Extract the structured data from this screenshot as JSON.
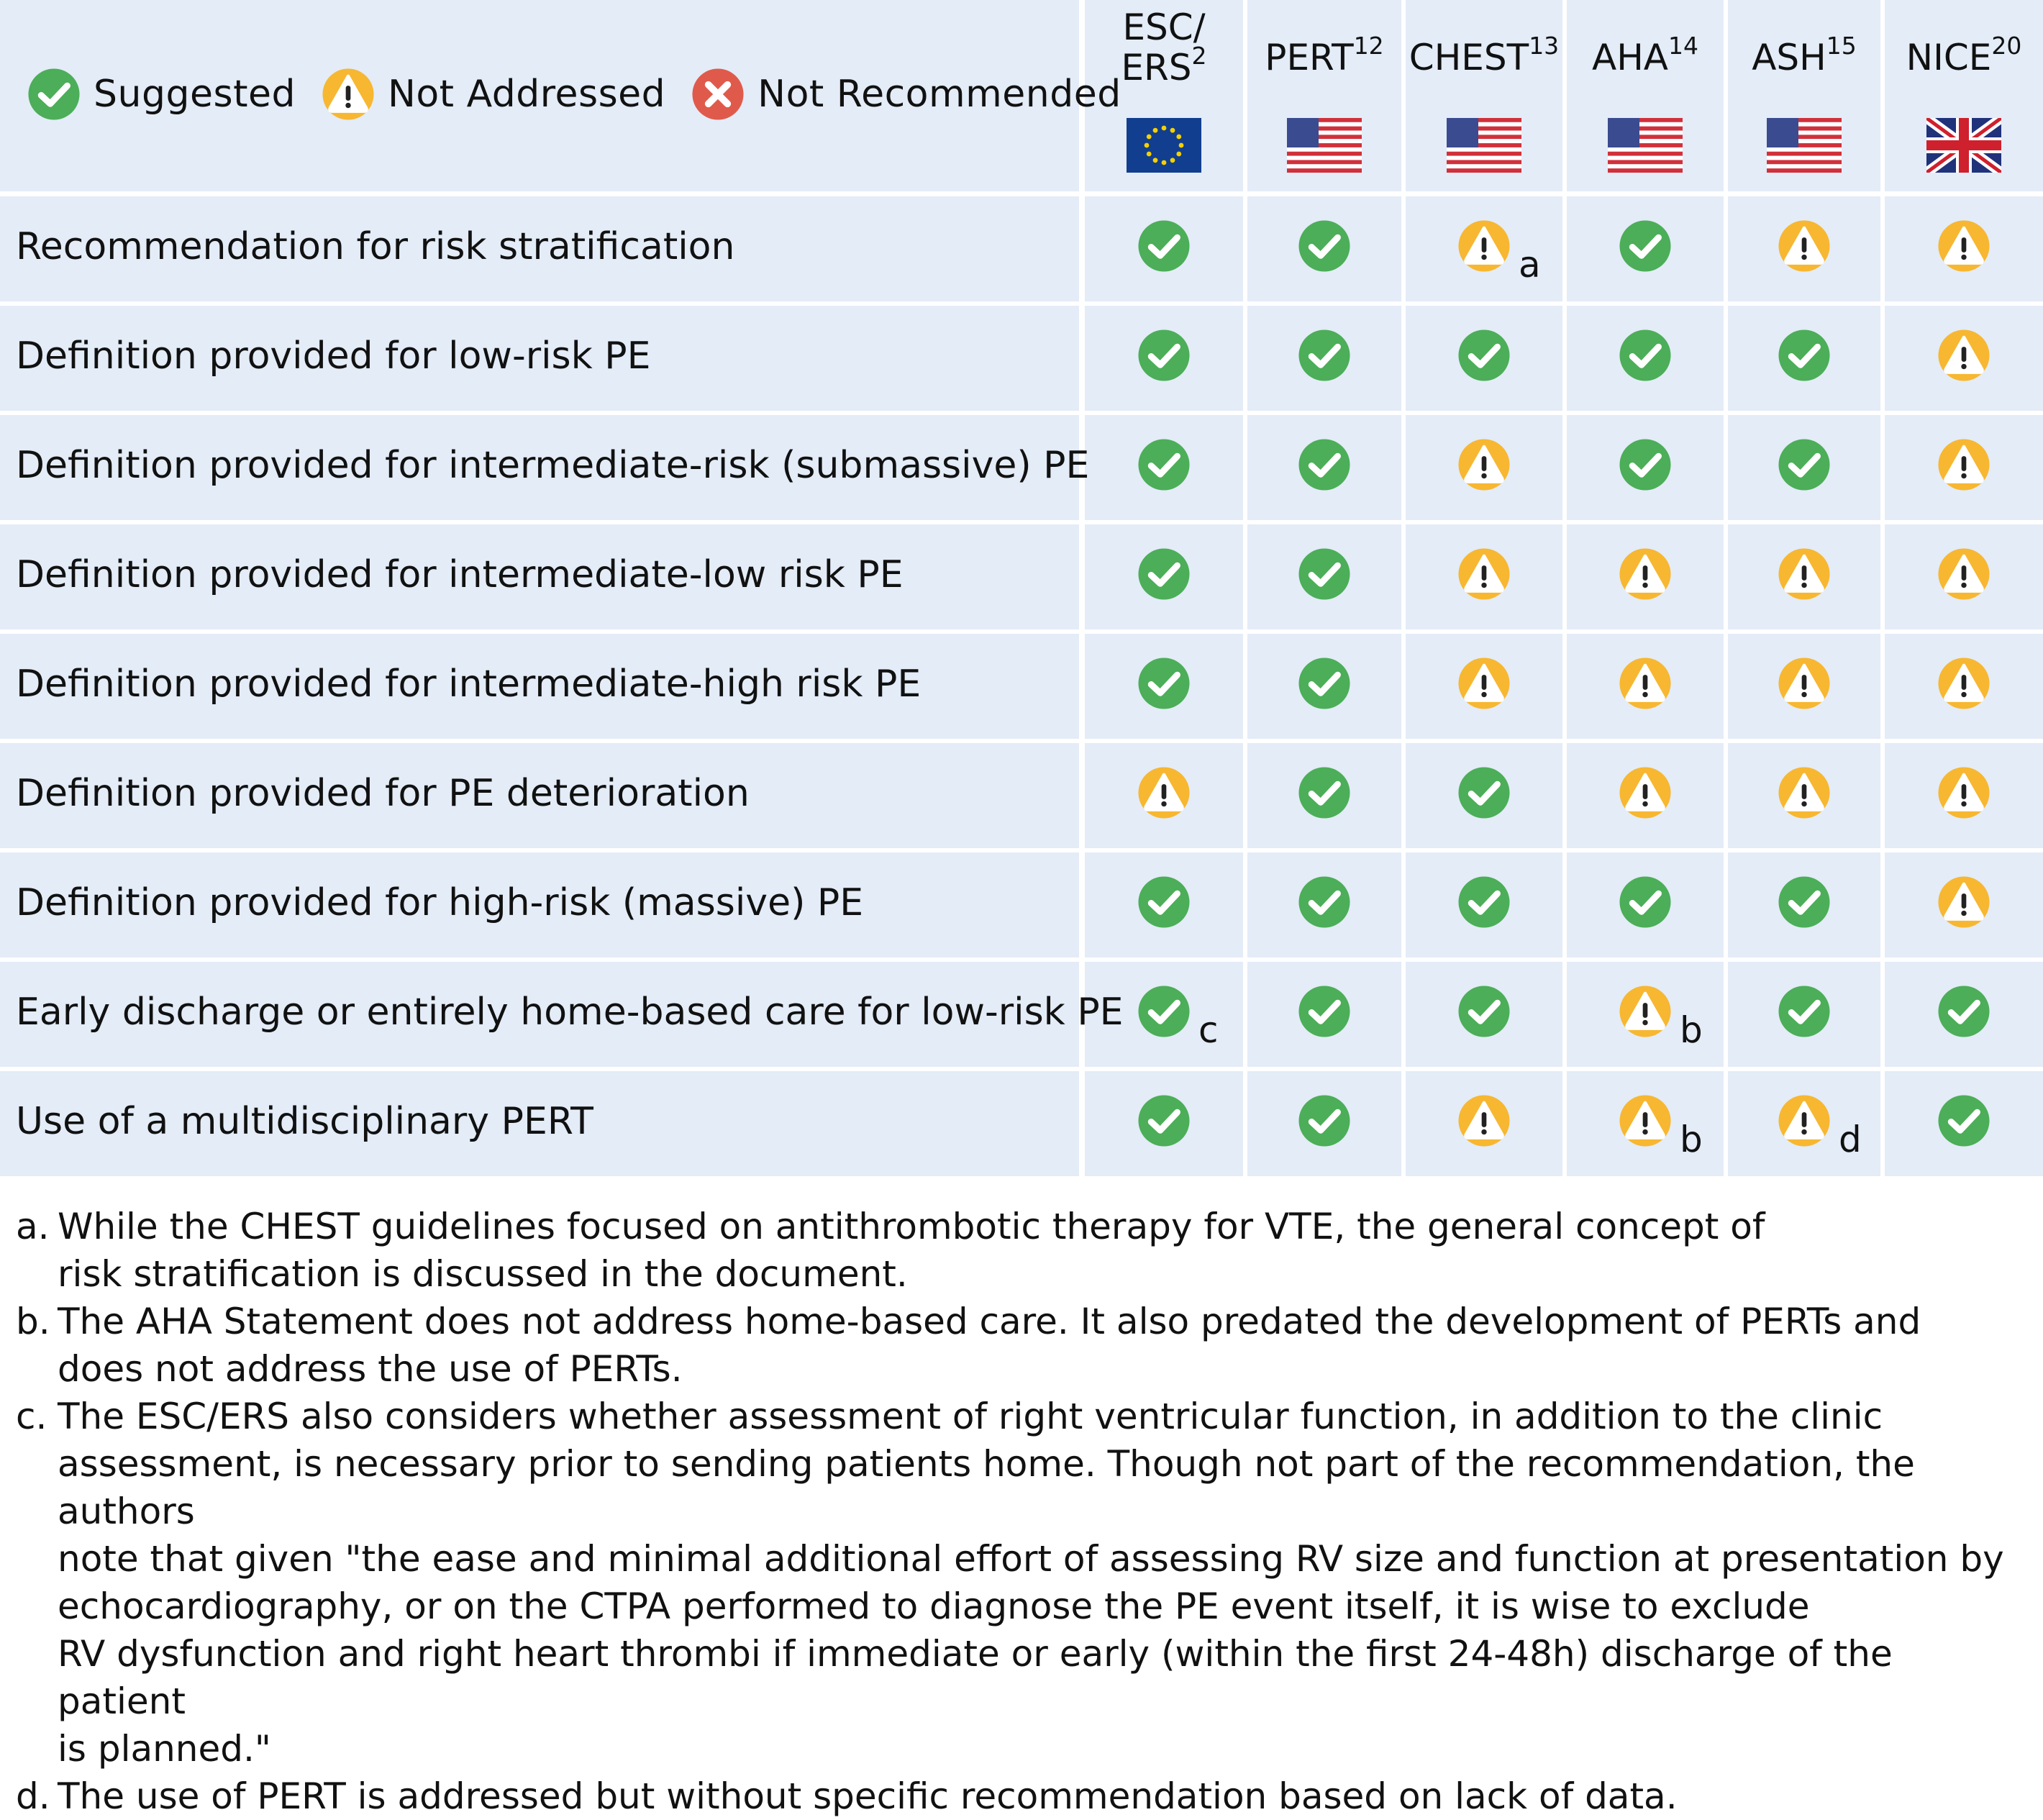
{
  "legend": [
    {
      "icon": "check-icon",
      "label": "Suggested"
    },
    {
      "icon": "warning-icon",
      "label": "Not Addressed"
    },
    {
      "icon": "x-icon",
      "label": "Not Recommended"
    }
  ],
  "colors": {
    "cell_bg": "#e3ecf7",
    "green": "#4cae58",
    "amber": "#f7b731",
    "red": "#e05a4b"
  },
  "columns": [
    {
      "name": "ESC/ERS",
      "name_lines": [
        "ESC/",
        "ERS"
      ],
      "ref": "2",
      "flag": "eu-flag-icon"
    },
    {
      "name": "PERT",
      "ref": "12",
      "flag": "us-flag-icon"
    },
    {
      "name": "CHEST",
      "ref": "13",
      "flag": "us-flag-icon"
    },
    {
      "name": "AHA",
      "ref": "14",
      "flag": "us-flag-icon"
    },
    {
      "name": "ASH",
      "ref": "15",
      "flag": "us-flag-icon"
    },
    {
      "name": "NICE",
      "ref": "20",
      "flag": "uk-flag-icon"
    }
  ],
  "rows": [
    {
      "label": "Recommendation for risk stratification",
      "values": [
        "check",
        "check",
        "warning",
        "check",
        "warning",
        "warning"
      ],
      "notes": [
        "",
        "",
        "a",
        "",
        "",
        ""
      ]
    },
    {
      "label": "Definition provided for low-risk PE",
      "values": [
        "check",
        "check",
        "check",
        "check",
        "check",
        "warning"
      ],
      "notes": [
        "",
        "",
        "",
        "",
        "",
        ""
      ]
    },
    {
      "label": "Definition provided for intermediate-risk (submassive) PE",
      "values": [
        "check",
        "check",
        "warning",
        "check",
        "check",
        "warning"
      ],
      "notes": [
        "",
        "",
        "",
        "",
        "",
        ""
      ]
    },
    {
      "label": "Definition provided for intermediate-low risk PE",
      "values": [
        "check",
        "check",
        "warning",
        "warning",
        "warning",
        "warning"
      ],
      "notes": [
        "",
        "",
        "",
        "",
        "",
        ""
      ]
    },
    {
      "label": "Definition provided for intermediate-high risk PE",
      "values": [
        "check",
        "check",
        "warning",
        "warning",
        "warning",
        "warning"
      ],
      "notes": [
        "",
        "",
        "",
        "",
        "",
        ""
      ]
    },
    {
      "label": "Definition provided for PE deterioration",
      "values": [
        "warning",
        "check",
        "check",
        "warning",
        "warning",
        "warning"
      ],
      "notes": [
        "",
        "",
        "",
        "",
        "",
        ""
      ]
    },
    {
      "label": "Definition provided for high-risk (massive) PE",
      "values": [
        "check",
        "check",
        "check",
        "check",
        "check",
        "warning"
      ],
      "notes": [
        "",
        "",
        "",
        "",
        "",
        ""
      ]
    },
    {
      "label": "Early discharge or entirely home-based care for low-risk PE",
      "values": [
        "check",
        "check",
        "check",
        "warning",
        "check",
        "check"
      ],
      "notes": [
        "c",
        "",
        "",
        "b",
        "",
        ""
      ]
    },
    {
      "label": "Use of a multidisciplinary PERT",
      "values": [
        "check",
        "check",
        "warning",
        "warning",
        "warning",
        "check"
      ],
      "notes": [
        "",
        "",
        "",
        "b",
        "d",
        ""
      ]
    }
  ],
  "footnotes": [
    {
      "letter": "a.",
      "lines": [
        "While the CHEST guidelines focused on antithrombotic therapy for VTE, the general concept of",
        "risk stratification is discussed in the document."
      ]
    },
    {
      "letter": "b.",
      "lines": [
        "The AHA Statement does not address home-based care. It also predated the development of PERTs and",
        "does not address the use of PERTs."
      ]
    },
    {
      "letter": "c.",
      "lines": [
        "The ESC/ERS also considers whether assessment of right ventricular function, in addition to the clinic",
        "assessment, is necessary prior to sending patients home. Though not part of the recommendation, the authors",
        "note that given \"the ease and minimal additional effort of assessing RV size and function at presentation by",
        "echocardiography, or on the CTPA performed to diagnose the PE event itself, it is wise to exclude",
        "RV dysfunction and right heart thrombi if immediate or early (within the first 24-48h) discharge of the patient",
        "is planned.\""
      ]
    },
    {
      "letter": "d.",
      "lines": [
        "The use of PERT is addressed but without specific recommendation based on lack of data."
      ]
    }
  ]
}
